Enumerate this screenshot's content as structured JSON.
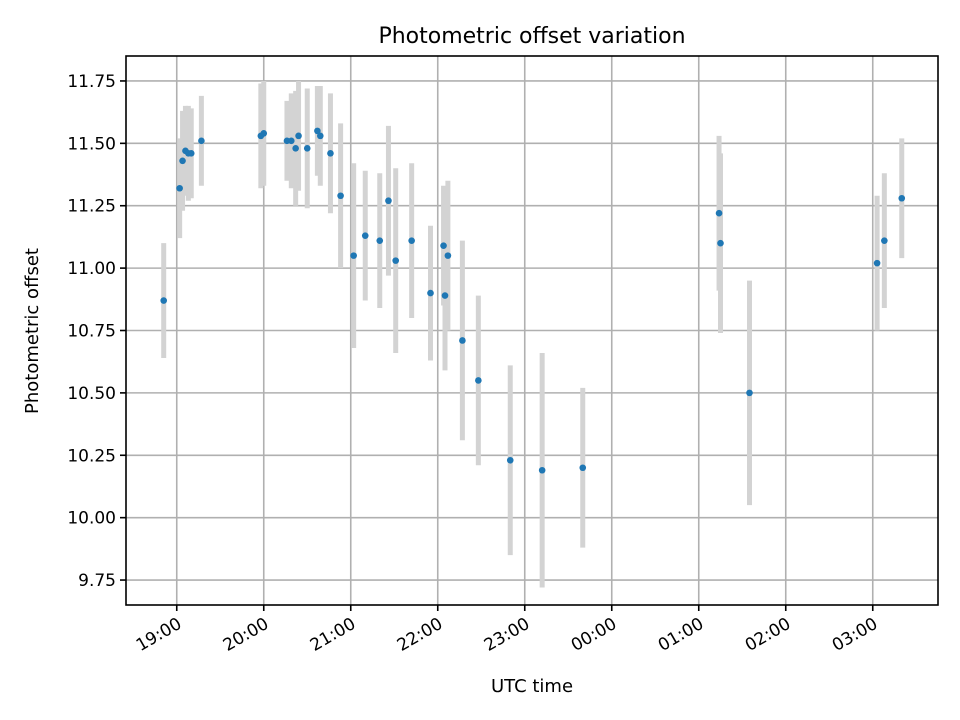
{
  "chart_data": {
    "type": "scatter",
    "title": "Photometric offset variation",
    "xlabel": "UTC time",
    "ylabel": "Photometric offset",
    "xlim": [
      "18:25",
      "03:45 (+1d)"
    ],
    "ylim": [
      9.65,
      11.85
    ],
    "grid": true,
    "x_ticks": [
      "19:00",
      "20:00",
      "21:00",
      "22:00",
      "23:00",
      "00:00",
      "01:00",
      "02:00",
      "03:00"
    ],
    "y_ticks": [
      "9.75",
      "10.00",
      "10.25",
      "10.50",
      "10.75",
      "11.00",
      "11.25",
      "11.50",
      "11.75"
    ],
    "errorbar_color": "#d3d3d3",
    "marker_color": "#1f77b4",
    "series": [
      {
        "points": [
          {
            "x": "18:51",
            "y": 10.87,
            "err": 0.23
          },
          {
            "x": "19:02",
            "y": 11.32,
            "err": 0.2
          },
          {
            "x": "19:04",
            "y": 11.43,
            "err": 0.2
          },
          {
            "x": "19:06",
            "y": 11.47,
            "err": 0.18
          },
          {
            "x": "19:08",
            "y": 11.46,
            "err": 0.19
          },
          {
            "x": "19:10",
            "y": 11.46,
            "err": 0.18
          },
          {
            "x": "19:17",
            "y": 11.51,
            "err": 0.18
          },
          {
            "x": "19:58",
            "y": 11.53,
            "err": 0.21
          },
          {
            "x": "20:00",
            "y": 11.54,
            "err": 0.21
          },
          {
            "x": "20:16",
            "y": 11.51,
            "err": 0.16
          },
          {
            "x": "20:19",
            "y": 11.51,
            "err": 0.19
          },
          {
            "x": "20:22",
            "y": 11.48,
            "err": 0.23
          },
          {
            "x": "20:24",
            "y": 11.53,
            "err": 0.22
          },
          {
            "x": "20:30",
            "y": 11.48,
            "err": 0.24
          },
          {
            "x": "20:37",
            "y": 11.55,
            "err": 0.18
          },
          {
            "x": "20:39",
            "y": 11.53,
            "err": 0.2
          },
          {
            "x": "20:46",
            "y": 11.46,
            "err": 0.24
          },
          {
            "x": "20:53",
            "y": 11.29,
            "err": 0.29
          },
          {
            "x": "21:02",
            "y": 11.05,
            "err": 0.37
          },
          {
            "x": "21:10",
            "y": 11.13,
            "err": 0.26
          },
          {
            "x": "21:20",
            "y": 11.11,
            "err": 0.27
          },
          {
            "x": "21:26",
            "y": 11.27,
            "err": 0.3
          },
          {
            "x": "21:31",
            "y": 11.03,
            "err": 0.37
          },
          {
            "x": "21:42",
            "y": 11.11,
            "err": 0.31
          },
          {
            "x": "21:55",
            "y": 10.9,
            "err": 0.27
          },
          {
            "x": "22:04",
            "y": 11.09,
            "err": 0.24
          },
          {
            "x": "22:05",
            "y": 10.89,
            "err": 0.3
          },
          {
            "x": "22:07",
            "y": 11.05,
            "err": 0.3
          },
          {
            "x": "22:17",
            "y": 10.71,
            "err": 0.4
          },
          {
            "x": "22:28",
            "y": 10.55,
            "err": 0.34
          },
          {
            "x": "22:50",
            "y": 10.23,
            "err": 0.38
          },
          {
            "x": "23:12",
            "y": 10.19,
            "err": 0.47
          },
          {
            "x": "23:40",
            "y": 10.2,
            "err": 0.32
          },
          {
            "x": "01:14",
            "y": 11.22,
            "err": 0.31
          },
          {
            "x": "01:15",
            "y": 11.1,
            "err": 0.36
          },
          {
            "x": "01:35",
            "y": 10.5,
            "err": 0.45
          },
          {
            "x": "03:03",
            "y": 11.02,
            "err": 0.27
          },
          {
            "x": "03:08",
            "y": 11.11,
            "err": 0.27
          },
          {
            "x": "03:20",
            "y": 11.28,
            "err": 0.24
          }
        ]
      }
    ]
  }
}
